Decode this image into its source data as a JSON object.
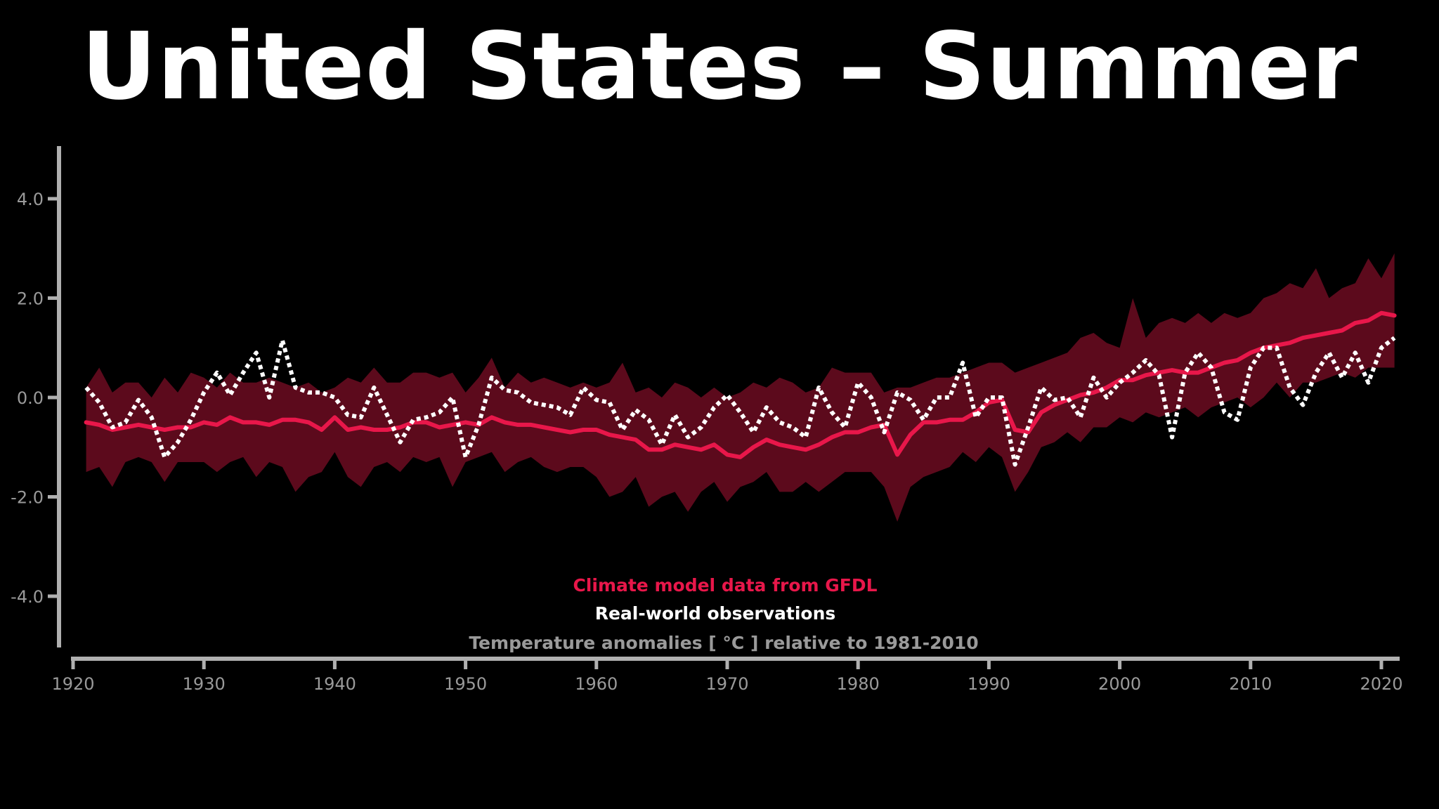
{
  "chart_data": {
    "type": "line",
    "title": "United States – Summer",
    "colors": {
      "background": "#000000",
      "model": "#e8174a",
      "model_band": "#5c0a1c",
      "observations": "#ffffff",
      "axis": "#b0b0b0",
      "tick_text": "#9a9a9a"
    },
    "xlim": [
      1920,
      2021
    ],
    "ylim": [
      -5.0,
      5.0
    ],
    "x_ticks": [
      1920,
      1930,
      1940,
      1950,
      1960,
      1970,
      1980,
      1990,
      2000,
      2010,
      2020
    ],
    "x_tick_labels": [
      "1920",
      "1930",
      "1940",
      "1950",
      "1960",
      "1970",
      "1980",
      "1990",
      "2000",
      "2010",
      "2020"
    ],
    "y_ticks": [
      4.0,
      2.0,
      0.0,
      -2.0,
      -4.0
    ],
    "y_tick_labels": [
      "4.0",
      "2.0",
      "0.0",
      "-2.0",
      "-4.0"
    ],
    "annotations": {
      "model_label": "Climate model data from GFDL",
      "obs_label": "Real-world observations",
      "units_label": "Temperature anomalies [ °C ] relative to 1981-2010"
    },
    "x": [
      1921,
      1922,
      1923,
      1924,
      1925,
      1926,
      1927,
      1928,
      1929,
      1930,
      1931,
      1932,
      1933,
      1934,
      1935,
      1936,
      1937,
      1938,
      1939,
      1940,
      1941,
      1942,
      1943,
      1944,
      1945,
      1946,
      1947,
      1948,
      1949,
      1950,
      1951,
      1952,
      1953,
      1954,
      1955,
      1956,
      1957,
      1958,
      1959,
      1960,
      1961,
      1962,
      1963,
      1964,
      1965,
      1966,
      1967,
      1968,
      1969,
      1970,
      1971,
      1972,
      1973,
      1974,
      1975,
      1976,
      1977,
      1978,
      1979,
      1980,
      1981,
      1982,
      1983,
      1984,
      1985,
      1986,
      1987,
      1988,
      1989,
      1990,
      1991,
      1992,
      1993,
      1994,
      1995,
      1996,
      1997,
      1998,
      1999,
      2000,
      2001,
      2002,
      2003,
      2004,
      2005,
      2006,
      2007,
      2008,
      2009,
      2010,
      2011,
      2012,
      2013,
      2014,
      2015,
      2016,
      2017,
      2018,
      2019,
      2020,
      2021
    ],
    "series": [
      {
        "name": "Climate model data from GFDL",
        "kind": "line",
        "values": [
          -0.5,
          -0.55,
          -0.65,
          -0.6,
          -0.55,
          -0.6,
          -0.65,
          -0.6,
          -0.6,
          -0.5,
          -0.55,
          -0.4,
          -0.5,
          -0.5,
          -0.55,
          -0.45,
          -0.45,
          -0.5,
          -0.65,
          -0.4,
          -0.65,
          -0.6,
          -0.65,
          -0.65,
          -0.6,
          -0.5,
          -0.5,
          -0.6,
          -0.55,
          -0.5,
          -0.55,
          -0.4,
          -0.5,
          -0.55,
          -0.55,
          -0.6,
          -0.65,
          -0.7,
          -0.65,
          -0.65,
          -0.75,
          -0.8,
          -0.85,
          -1.05,
          -1.05,
          -0.95,
          -1.0,
          -1.05,
          -0.95,
          -1.15,
          -1.2,
          -1.0,
          -0.85,
          -0.95,
          -1.0,
          -1.05,
          -0.95,
          -0.8,
          -0.7,
          -0.7,
          -0.6,
          -0.55,
          -1.15,
          -0.75,
          -0.5,
          -0.5,
          -0.45,
          -0.45,
          -0.3,
          -0.1,
          -0.05,
          -0.65,
          -0.7,
          -0.3,
          -0.15,
          -0.05,
          0.05,
          0.1,
          0.2,
          0.35,
          0.35,
          0.45,
          0.5,
          0.55,
          0.5,
          0.5,
          0.6,
          0.7,
          0.75,
          0.9,
          1.0,
          1.05,
          1.1,
          1.2,
          1.25,
          1.3,
          1.35,
          1.5,
          1.55,
          1.7,
          1.65
        ]
      },
      {
        "name": "Climate model data from GFDL",
        "kind": "band_upper",
        "values": [
          0.2,
          0.6,
          0.1,
          0.3,
          0.3,
          0.0,
          0.4,
          0.1,
          0.5,
          0.4,
          0.2,
          0.5,
          0.3,
          0.3,
          0.4,
          0.3,
          0.2,
          0.3,
          0.1,
          0.2,
          0.4,
          0.3,
          0.6,
          0.3,
          0.3,
          0.5,
          0.5,
          0.4,
          0.5,
          0.1,
          0.4,
          0.8,
          0.2,
          0.5,
          0.3,
          0.4,
          0.3,
          0.2,
          0.3,
          0.2,
          0.3,
          0.7,
          0.1,
          0.2,
          0.0,
          0.3,
          0.2,
          0.0,
          0.2,
          0.0,
          0.1,
          0.3,
          0.2,
          0.4,
          0.3,
          0.1,
          0.2,
          0.6,
          0.5,
          0.5,
          0.5,
          0.1,
          0.2,
          0.2,
          0.3,
          0.4,
          0.4,
          0.5,
          0.6,
          0.7,
          0.7,
          0.5,
          0.6,
          0.7,
          0.8,
          0.9,
          1.2,
          1.3,
          1.1,
          1.0,
          2.0,
          1.2,
          1.5,
          1.6,
          1.5,
          1.7,
          1.5,
          1.7,
          1.6,
          1.7,
          2.0,
          2.1,
          2.3,
          2.2,
          2.6,
          2.0,
          2.2,
          2.3,
          2.8,
          2.4,
          2.9
        ]
      },
      {
        "name": "Climate model data from GFDL",
        "kind": "band_lower",
        "values": [
          -1.5,
          -1.4,
          -1.8,
          -1.3,
          -1.2,
          -1.3,
          -1.7,
          -1.3,
          -1.3,
          -1.3,
          -1.5,
          -1.3,
          -1.2,
          -1.6,
          -1.3,
          -1.4,
          -1.9,
          -1.6,
          -1.5,
          -1.1,
          -1.6,
          -1.8,
          -1.4,
          -1.3,
          -1.5,
          -1.2,
          -1.3,
          -1.2,
          -1.8,
          -1.3,
          -1.2,
          -1.1,
          -1.5,
          -1.3,
          -1.2,
          -1.4,
          -1.5,
          -1.4,
          -1.4,
          -1.6,
          -2.0,
          -1.9,
          -1.6,
          -2.2,
          -2.0,
          -1.9,
          -2.3,
          -1.9,
          -1.7,
          -2.1,
          -1.8,
          -1.7,
          -1.5,
          -1.9,
          -1.9,
          -1.7,
          -1.9,
          -1.7,
          -1.5,
          -1.5,
          -1.5,
          -1.8,
          -2.5,
          -1.8,
          -1.6,
          -1.5,
          -1.4,
          -1.1,
          -1.3,
          -1.0,
          -1.2,
          -1.9,
          -1.5,
          -1.0,
          -0.9,
          -0.7,
          -0.9,
          -0.6,
          -0.6,
          -0.4,
          -0.5,
          -0.3,
          -0.4,
          -0.3,
          -0.2,
          -0.4,
          -0.2,
          -0.1,
          0.0,
          -0.2,
          0.0,
          0.3,
          0.0,
          0.3,
          0.3,
          0.4,
          0.5,
          0.4,
          0.6,
          0.6,
          0.6
        ]
      },
      {
        "name": "Real-world observations",
        "kind": "dashed_line",
        "values": [
          0.2,
          -0.1,
          -0.6,
          -0.5,
          -0.05,
          -0.4,
          -1.2,
          -0.9,
          -0.45,
          0.1,
          0.5,
          0.05,
          0.5,
          0.9,
          0.0,
          1.15,
          0.2,
          0.1,
          0.1,
          0.0,
          -0.35,
          -0.4,
          0.2,
          -0.35,
          -0.9,
          -0.45,
          -0.4,
          -0.3,
          0.0,
          -1.2,
          -0.55,
          0.4,
          0.15,
          0.1,
          -0.1,
          -0.15,
          -0.2,
          -0.35,
          0.2,
          -0.05,
          -0.1,
          -0.65,
          -0.25,
          -0.45,
          -0.95,
          -0.35,
          -0.8,
          -0.6,
          -0.2,
          0.05,
          -0.3,
          -0.7,
          -0.2,
          -0.5,
          -0.6,
          -0.8,
          0.2,
          -0.3,
          -0.6,
          0.3,
          0.0,
          -0.7,
          0.1,
          -0.05,
          -0.45,
          0.0,
          0.0,
          0.7,
          -0.4,
          0.0,
          0.0,
          -1.35,
          -0.6,
          0.2,
          -0.05,
          0.0,
          -0.4,
          0.4,
          0.0,
          0.3,
          0.5,
          0.75,
          0.45,
          -0.8,
          0.5,
          0.9,
          0.6,
          -0.3,
          -0.45,
          0.6,
          1.0,
          1.0,
          0.2,
          -0.15,
          0.5,
          0.9,
          0.4,
          0.9,
          0.3,
          1.0,
          1.2
        ]
      }
    ]
  }
}
